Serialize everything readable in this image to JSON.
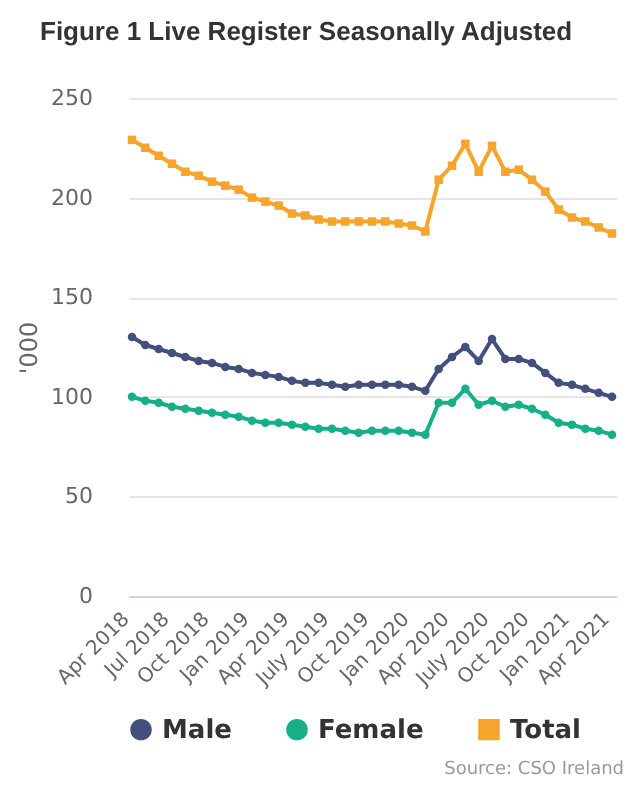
{
  "chart_data": {
    "type": "line",
    "title": "Figure 1 Live Register Seasonally Adjusted",
    "ylabel": "'000",
    "categories": [
      "Apr 2018",
      null,
      null,
      "Jul 2018",
      null,
      null,
      "Oct 2018",
      null,
      null,
      "Jan 2019",
      null,
      null,
      "Apr 2019",
      null,
      null,
      "July 2019",
      null,
      null,
      "Oct 2019",
      null,
      null,
      "Jan 2020",
      null,
      null,
      "Apr 2020",
      null,
      null,
      "July 2020",
      null,
      null,
      "Oct 2020",
      null,
      null,
      "Jan 2021",
      null,
      null,
      "Apr 2021"
    ],
    "series": [
      {
        "name": "Male",
        "color": "#434f7c",
        "marker": "circle",
        "values": [
          130,
          126,
          124,
          122,
          120,
          118,
          117,
          115,
          114,
          112,
          111,
          110,
          108,
          107,
          107,
          106,
          105,
          106,
          106,
          106,
          106,
          105,
          103,
          114,
          120,
          125,
          118,
          129,
          119,
          119,
          117,
          112,
          107,
          106,
          104,
          102,
          100
        ]
      },
      {
        "name": "Female",
        "color": "#16b088",
        "marker": "circle",
        "values": [
          100,
          98,
          97,
          95,
          94,
          93,
          92,
          91,
          90,
          88,
          87,
          87,
          86,
          85,
          84,
          84,
          83,
          82,
          83,
          83,
          83,
          82,
          81,
          97,
          97,
          104,
          96,
          98,
          95,
          96,
          94,
          91,
          87,
          86,
          84,
          83,
          81
        ]
      },
      {
        "name": "Total",
        "color": "#f5a52b",
        "marker": "square",
        "values": [
          229,
          225,
          221,
          217,
          213,
          211,
          208,
          206,
          204,
          200,
          198,
          196,
          192,
          191,
          189,
          188,
          188,
          188,
          188,
          188,
          187,
          186,
          183,
          209,
          216,
          227,
          213,
          226,
          213,
          214,
          209,
          203,
          194,
          190,
          188,
          185,
          182
        ]
      }
    ],
    "ylim": [
      0,
      250
    ],
    "yticks": [
      0,
      50,
      100,
      150,
      200,
      250
    ],
    "grid": "y",
    "legend": "bottom",
    "annotations": [
      "Source: CSO Ireland"
    ]
  }
}
